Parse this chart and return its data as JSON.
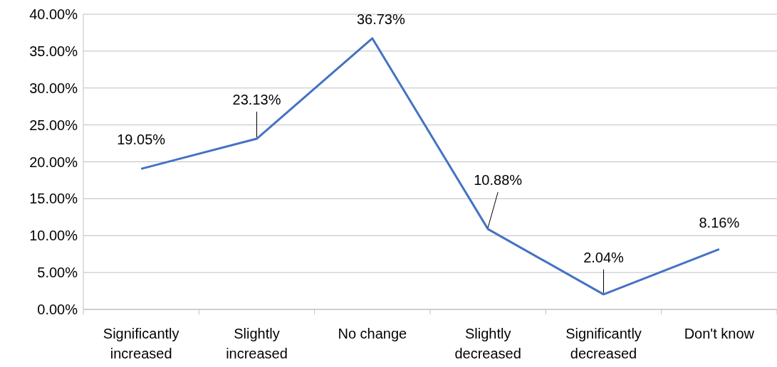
{
  "chart_data": {
    "type": "line",
    "categories": [
      "Significantly increased",
      "Slightly increased",
      "No change",
      "Slightly decreased",
      "Significantly decreased",
      "Don't know"
    ],
    "series": [
      {
        "color": "#4472c4",
        "values": [
          19.05,
          23.13,
          36.73,
          10.88,
          2.04,
          8.16
        ],
        "value_labels": [
          "19.05%",
          "23.13%",
          "36.73%",
          "10.88%",
          "2.04%",
          "8.16%"
        ]
      }
    ],
    "ylim": [
      0,
      40
    ],
    "yticks": [
      {
        "value": 0,
        "label": "0.00%"
      },
      {
        "value": 5,
        "label": "5.00%"
      },
      {
        "value": 10,
        "label": "10.00%"
      },
      {
        "value": 15,
        "label": "15.00%"
      },
      {
        "value": 20,
        "label": "20.00%"
      },
      {
        "value": 25,
        "label": "25.00%"
      },
      {
        "value": 30,
        "label": "30.00%"
      },
      {
        "value": 35,
        "label": "35.00%"
      },
      {
        "value": 40,
        "label": "40.00%"
      }
    ],
    "grid": "y",
    "marker": "none",
    "line_style": "solid"
  }
}
